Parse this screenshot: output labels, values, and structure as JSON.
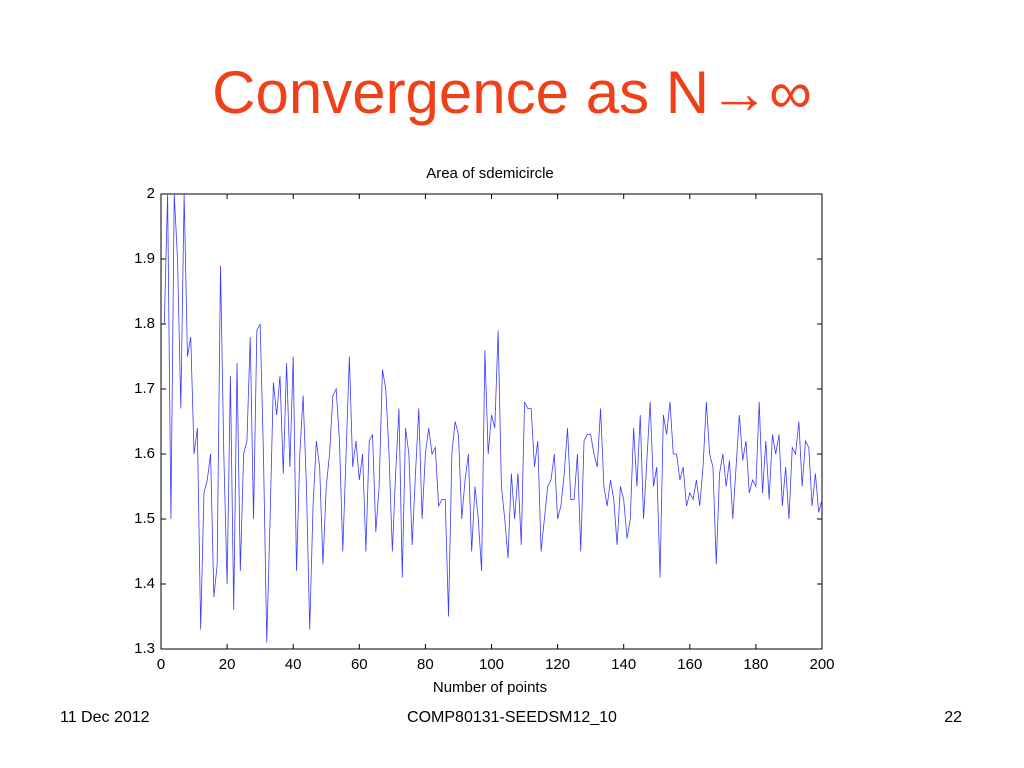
{
  "slide_title": "Convergence as N→∞",
  "footer": {
    "date": "11 Dec 2012",
    "course": "COMP80131-SEEDSM12_10",
    "page": "22"
  },
  "chart_data": {
    "type": "line",
    "title": "Area of sdemicircle",
    "x_label": "Number of points",
    "xlim": [
      0,
      200
    ],
    "xticks": [
      0,
      20,
      40,
      60,
      80,
      100,
      120,
      140,
      160,
      180,
      200
    ],
    "ylim": [
      1.3,
      2
    ],
    "yticks": [
      1.3,
      1.4,
      1.5,
      1.6,
      1.7,
      1.8,
      1.9,
      2
    ],
    "series": [
      {
        "color": "#3b3bff",
        "x": [
          1,
          2,
          3,
          4,
          5,
          6,
          7,
          8,
          9,
          10,
          11,
          12,
          13,
          14,
          15,
          16,
          17,
          18,
          19,
          20,
          21,
          22,
          23,
          24,
          25,
          26,
          27,
          28,
          29,
          30,
          31,
          32,
          33,
          34,
          35,
          36,
          37,
          38,
          39,
          40,
          41,
          42,
          43,
          44,
          45,
          46,
          47,
          48,
          49,
          50,
          51,
          52,
          53,
          54,
          55,
          56,
          57,
          58,
          59,
          60,
          61,
          62,
          63,
          64,
          65,
          66,
          67,
          68,
          69,
          70,
          71,
          72,
          73,
          74,
          75,
          76,
          77,
          78,
          79,
          80,
          81,
          82,
          83,
          84,
          85,
          86,
          87,
          88,
          89,
          90,
          91,
          92,
          93,
          94,
          95,
          96,
          97,
          98,
          99,
          100,
          101,
          102,
          103,
          104,
          105,
          106,
          107,
          108,
          109,
          110,
          111,
          112,
          113,
          114,
          115,
          116,
          117,
          118,
          119,
          120,
          121,
          122,
          123,
          124,
          125,
          126,
          127,
          128,
          129,
          130,
          131,
          132,
          133,
          134,
          135,
          136,
          137,
          138,
          139,
          140,
          141,
          142,
          143,
          144,
          145,
          146,
          147,
          148,
          149,
          150,
          151,
          152,
          153,
          154,
          155,
          156,
          157,
          158,
          159,
          160,
          161,
          162,
          163,
          164,
          165,
          166,
          167,
          168,
          169,
          170,
          171,
          172,
          173,
          174,
          175,
          176,
          177,
          178,
          179,
          180,
          181,
          182,
          183,
          184,
          185,
          186,
          187,
          188,
          189,
          190,
          191,
          192,
          193,
          194,
          195,
          196,
          197,
          198,
          199,
          200
        ],
        "values": [
          1.8,
          2.0,
          1.5,
          2.0,
          1.9,
          1.67,
          2.0,
          1.75,
          1.78,
          1.6,
          1.64,
          1.33,
          1.54,
          1.56,
          1.6,
          1.38,
          1.43,
          1.89,
          1.6,
          1.4,
          1.72,
          1.36,
          1.74,
          1.42,
          1.6,
          1.62,
          1.78,
          1.5,
          1.79,
          1.8,
          1.6,
          1.31,
          1.5,
          1.71,
          1.66,
          1.72,
          1.57,
          1.74,
          1.58,
          1.75,
          1.42,
          1.6,
          1.69,
          1.55,
          1.33,
          1.52,
          1.62,
          1.58,
          1.43,
          1.55,
          1.6,
          1.69,
          1.7,
          1.62,
          1.45,
          1.6,
          1.75,
          1.58,
          1.62,
          1.56,
          1.6,
          1.45,
          1.62,
          1.63,
          1.48,
          1.55,
          1.73,
          1.7,
          1.6,
          1.45,
          1.57,
          1.67,
          1.41,
          1.64,
          1.6,
          1.46,
          1.57,
          1.67,
          1.5,
          1.6,
          1.64,
          1.6,
          1.61,
          1.52,
          1.53,
          1.53,
          1.35,
          1.6,
          1.65,
          1.63,
          1.5,
          1.56,
          1.6,
          1.45,
          1.55,
          1.5,
          1.42,
          1.76,
          1.6,
          1.66,
          1.64,
          1.79,
          1.55,
          1.5,
          1.44,
          1.57,
          1.5,
          1.57,
          1.46,
          1.68,
          1.67,
          1.67,
          1.58,
          1.62,
          1.45,
          1.5,
          1.55,
          1.56,
          1.6,
          1.5,
          1.52,
          1.57,
          1.64,
          1.53,
          1.53,
          1.6,
          1.45,
          1.62,
          1.63,
          1.63,
          1.6,
          1.58,
          1.67,
          1.55,
          1.52,
          1.56,
          1.53,
          1.46,
          1.55,
          1.53,
          1.47,
          1.5,
          1.64,
          1.55,
          1.66,
          1.5,
          1.59,
          1.68,
          1.55,
          1.58,
          1.41,
          1.66,
          1.63,
          1.68,
          1.6,
          1.6,
          1.56,
          1.58,
          1.52,
          1.54,
          1.53,
          1.56,
          1.52,
          1.58,
          1.68,
          1.6,
          1.58,
          1.43,
          1.57,
          1.6,
          1.55,
          1.59,
          1.5,
          1.58,
          1.66,
          1.59,
          1.62,
          1.54,
          1.56,
          1.55,
          1.68,
          1.54,
          1.62,
          1.53,
          1.63,
          1.6,
          1.63,
          1.52,
          1.58,
          1.5,
          1.61,
          1.6,
          1.65,
          1.55,
          1.62,
          1.61,
          1.52,
          1.57,
          1.51,
          1.53
        ]
      }
    ]
  }
}
